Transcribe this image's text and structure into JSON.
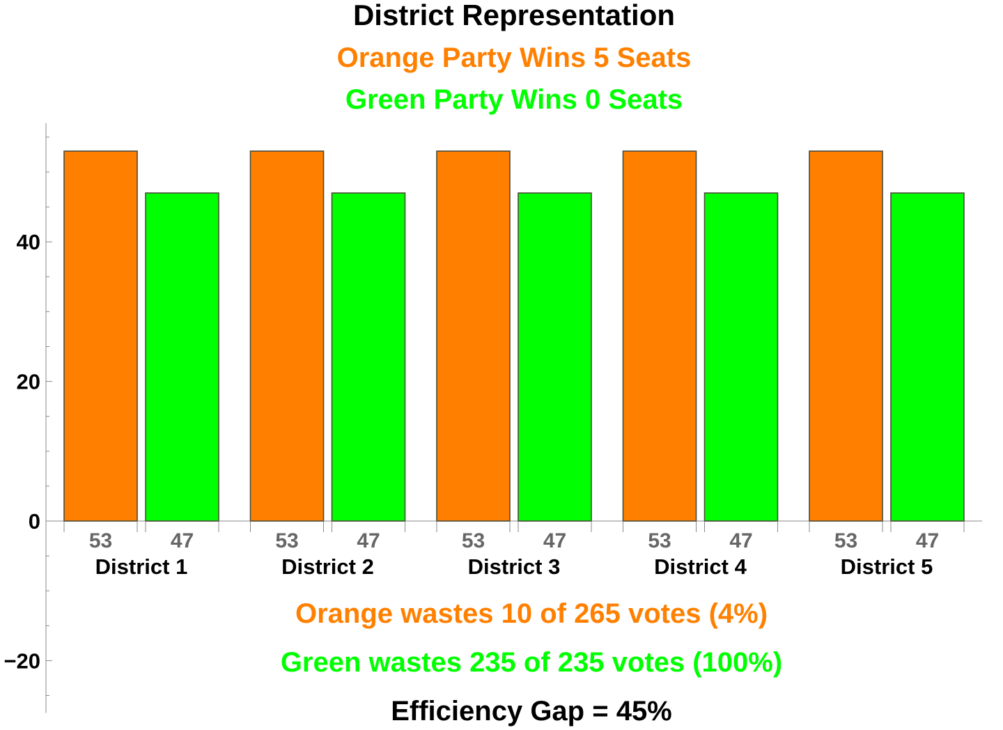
{
  "chart_data": {
    "type": "bar",
    "title": "District Representation",
    "subtitles": [
      {
        "text": "Orange Party Wins 5 Seats",
        "color": "#ff8000"
      },
      {
        "text": "Green Party Wins 0 Seats",
        "color": "#00ff00"
      }
    ],
    "categories": [
      "District 1",
      "District 2",
      "District 3",
      "District 4",
      "District 5"
    ],
    "series": [
      {
        "color": "#ff8000",
        "values": [
          53,
          53,
          53,
          53,
          53
        ]
      },
      {
        "color": "#00ff00",
        "values": [
          47,
          47,
          47,
          47,
          47
        ]
      }
    ],
    "bar_value_labels": [
      [
        "53",
        "47"
      ],
      [
        "53",
        "47"
      ],
      [
        "53",
        "47"
      ],
      [
        "53",
        "47"
      ],
      [
        "53",
        "47"
      ]
    ],
    "yticks": [
      -20,
      0,
      20,
      40
    ],
    "ylim": [
      -27.5,
      57
    ],
    "annotations": [
      {
        "text": "Orange wastes 10 of 265 votes (4%)",
        "color": "#ff8000"
      },
      {
        "text": "Green wastes 235 of 235 votes (100%)",
        "color": "#00ff00"
      },
      {
        "text": "Efficiency Gap = 45%",
        "color": "#000000"
      }
    ],
    "grid": false,
    "xlabel": "",
    "ylabel": ""
  }
}
